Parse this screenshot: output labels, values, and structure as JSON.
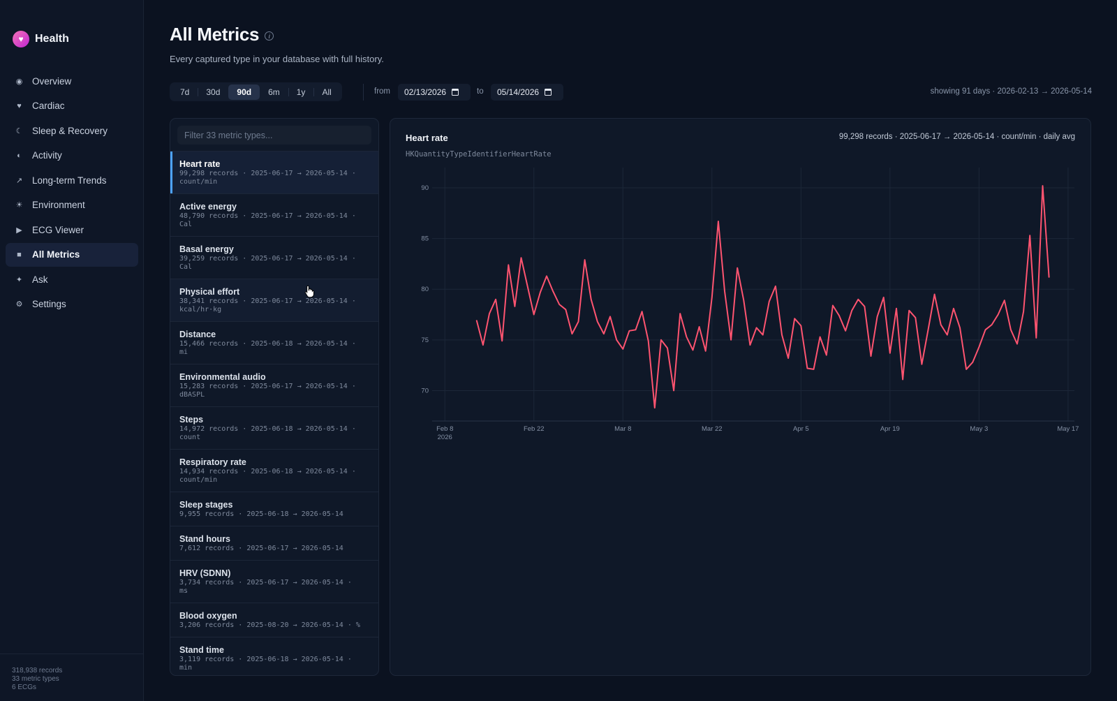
{
  "app": {
    "name": "Health",
    "logo_icon": "heart-icon"
  },
  "sidebar": {
    "items": [
      {
        "label": "Overview",
        "icon": "circle-dot-icon",
        "glyph": "◉"
      },
      {
        "label": "Cardiac",
        "icon": "heart-icon",
        "glyph": "♥"
      },
      {
        "label": "Sleep & Recovery",
        "icon": "moon-icon",
        "glyph": "☾"
      },
      {
        "label": "Activity",
        "icon": "half-circle-icon",
        "glyph": "◐"
      },
      {
        "label": "Long-term Trends",
        "icon": "arrow-up-right-icon",
        "glyph": "↗"
      },
      {
        "label": "Environment",
        "icon": "sun-icon",
        "glyph": "☀"
      },
      {
        "label": "ECG Viewer",
        "icon": "play-icon",
        "glyph": "▶"
      },
      {
        "label": "All Metrics",
        "icon": "square-icon",
        "glyph": "■",
        "active": true
      },
      {
        "label": "Ask",
        "icon": "sparkle-icon",
        "glyph": "✦"
      },
      {
        "label": "Settings",
        "icon": "gear-icon",
        "glyph": "⚙"
      }
    ],
    "footer": {
      "records": "318,938 records",
      "metric_types": "33 metric types",
      "ecgs": "6 ECGs"
    }
  },
  "header": {
    "title": "All Metrics",
    "info_glyph": "i",
    "subtitle": "Every captured type in your database with full history."
  },
  "range": {
    "options": [
      "7d",
      "30d",
      "90d",
      "6m",
      "1y",
      "All"
    ],
    "selected": "90d",
    "from_label": "from",
    "to_label": "to",
    "from_value": "02/13/2026",
    "to_value": "05/14/2026",
    "showing": "showing 91 days · 2026-02-13 → 2026-05-14"
  },
  "filter": {
    "placeholder": "Filter 33 metric types..."
  },
  "metrics": [
    {
      "name": "Heart rate",
      "meta1": "99,298 records · 2025-06-17 → 2026-05-14 ·",
      "meta2": "count/min",
      "active": true
    },
    {
      "name": "Active energy",
      "meta1": "48,790 records · 2025-06-17 → 2026-05-14 ·",
      "meta2": "Cal"
    },
    {
      "name": "Basal energy",
      "meta1": "39,259 records · 2025-06-17 → 2026-05-14 ·",
      "meta2": "Cal"
    },
    {
      "name": "Physical effort",
      "meta1": "38,341 records · 2025-06-17 → 2026-05-14 ·",
      "meta2": "kcal/hr·kg",
      "hover": true
    },
    {
      "name": "Distance",
      "meta1": "15,466 records · 2025-06-18 → 2026-05-14 ·",
      "meta2": "mi"
    },
    {
      "name": "Environmental audio",
      "meta1": "15,283 records · 2025-06-17 → 2026-05-14 ·",
      "meta2": "dBASPL"
    },
    {
      "name": "Steps",
      "meta1": "14,972 records · 2025-06-18 → 2026-05-14 ·",
      "meta2": "count"
    },
    {
      "name": "Respiratory rate",
      "meta1": "14,934 records · 2025-06-18 → 2026-05-14 ·",
      "meta2": "count/min"
    },
    {
      "name": "Sleep stages",
      "meta1": "9,955 records · 2025-06-18 → 2026-05-14",
      "meta2": ""
    },
    {
      "name": "Stand hours",
      "meta1": "7,612 records · 2025-06-17 → 2026-05-14",
      "meta2": ""
    },
    {
      "name": "HRV (SDNN)",
      "meta1": "3,734 records · 2025-06-17 → 2026-05-14 ·",
      "meta2": "ms"
    },
    {
      "name": "Blood oxygen",
      "meta1": "3,206 records · 2025-08-20 → 2026-05-14 · %",
      "meta2": ""
    },
    {
      "name": "Stand time",
      "meta1": "3,119 records · 2025-06-18 → 2026-05-14 ·",
      "meta2": "min"
    }
  ],
  "chart": {
    "title": "Heart rate",
    "meta": "99,298 records · 2025-06-17 → 2026-05-14 · count/min · daily avg",
    "identifier": "HKQuantityTypeIdentifierHeartRate"
  },
  "chart_data": {
    "type": "line",
    "line_color": "#ff5470",
    "x_start": "2026-02-13",
    "x_range": [
      "2026-02-06",
      "2026-05-18"
    ],
    "ylim": [
      67,
      92
    ],
    "yticks": [
      70,
      75,
      80,
      85,
      90
    ],
    "xticks": [
      {
        "date": "2026-02-08",
        "label": "Feb 8",
        "sublabel": "2026"
      },
      {
        "date": "2026-02-22",
        "label": "Feb 22"
      },
      {
        "date": "2026-03-08",
        "label": "Mar 8"
      },
      {
        "date": "2026-03-22",
        "label": "Mar 22"
      },
      {
        "date": "2026-04-05",
        "label": "Apr 5"
      },
      {
        "date": "2026-04-19",
        "label": "Apr 19"
      },
      {
        "date": "2026-05-03",
        "label": "May 3"
      },
      {
        "date": "2026-05-17",
        "label": "May 17"
      }
    ],
    "grid": true,
    "values": [
      76.9,
      74.5,
      77.6,
      79.0,
      74.9,
      82.4,
      78.3,
      83.1,
      80.3,
      77.5,
      79.7,
      81.3,
      79.8,
      78.5,
      78.0,
      75.6,
      76.8,
      82.9,
      79.0,
      76.8,
      75.6,
      77.3,
      75.0,
      74.1,
      75.9,
      76.0,
      77.8,
      74.9,
      68.3,
      75.0,
      74.2,
      70.0,
      77.6,
      75.3,
      74.0,
      76.3,
      73.9,
      79.2,
      86.7,
      79.8,
      75.0,
      82.1,
      78.9,
      74.5,
      76.2,
      75.5,
      78.8,
      80.3,
      75.5,
      73.2,
      77.1,
      76.4,
      72.2,
      72.1,
      75.3,
      73.5,
      78.4,
      77.4,
      75.9,
      77.9,
      79.0,
      78.3,
      73.4,
      77.3,
      79.2,
      73.7,
      78.1,
      71.1,
      77.9,
      77.2,
      72.6,
      76.0,
      79.5,
      76.5,
      75.5,
      78.1,
      76.2,
      72.1,
      72.8,
      74.3,
      76.0,
      76.5,
      77.5,
      78.9,
      76.0,
      74.6,
      77.8,
      85.3,
      75.2,
      90.2,
      81.2
    ]
  }
}
